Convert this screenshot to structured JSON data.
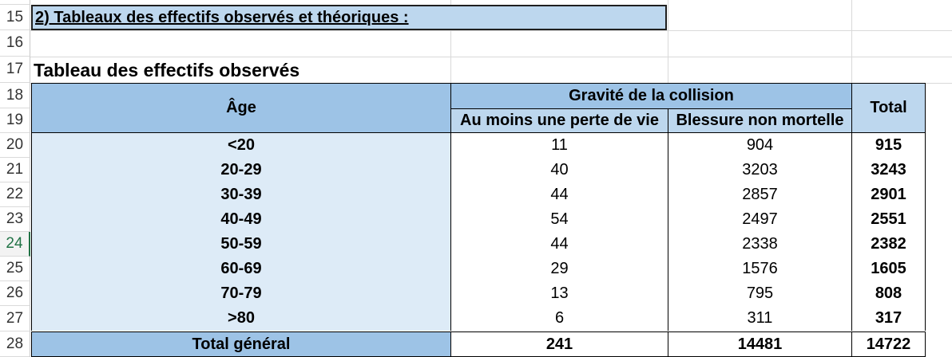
{
  "row_numbers": [
    "15",
    "16",
    "17",
    "18",
    "19",
    "20",
    "21",
    "22",
    "23",
    "24",
    "25",
    "26",
    "27",
    "28"
  ],
  "selected_row": "24",
  "section_title": "2) Tableaux des effectifs observés et théoriques :",
  "table_title": "Tableau des effectifs observés",
  "table": {
    "age_header": "Âge",
    "group_header": "Gravité de la collision",
    "col1_header": "Au moins une perte de vie",
    "col2_header": "Blessure non mortelle",
    "total_header": "Total",
    "rows": [
      {
        "age": "<20",
        "deaths": "11",
        "injuries": "904",
        "total": "915"
      },
      {
        "age": "20-29",
        "deaths": "40",
        "injuries": "3203",
        "total": "3243"
      },
      {
        "age": "30-39",
        "deaths": "44",
        "injuries": "2857",
        "total": "2901"
      },
      {
        "age": "40-49",
        "deaths": "54",
        "injuries": "2497",
        "total": "2551"
      },
      {
        "age": "50-59",
        "deaths": "44",
        "injuries": "2338",
        "total": "2382"
      },
      {
        "age": "60-69",
        "deaths": "29",
        "injuries": "1576",
        "total": "1605"
      },
      {
        "age": "70-79",
        "deaths": "13",
        "injuries": "795",
        "total": "808"
      },
      {
        "age": ">80",
        "deaths": "6",
        "injuries": "311",
        "total": "317"
      }
    ],
    "grand_total": {
      "label": "Total général",
      "deaths": "241",
      "injuries": "14481",
      "total": "14722"
    }
  },
  "colors": {
    "header_dark": "#9dc3e6",
    "header_light": "#bdd7ee",
    "age_column": "#ddebf7",
    "selection": "#217346"
  }
}
